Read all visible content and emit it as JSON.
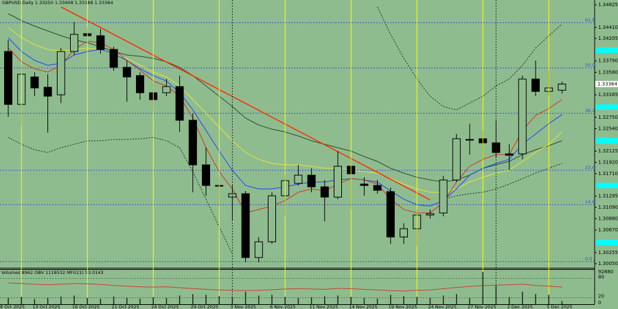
{
  "chart_data": {
    "type": "candlestick",
    "title": "GBPUSD,Daily 1.33250 1.33408 1.33188 1.33364",
    "background": "#8fbc8f",
    "bull_color": "#8fbc8f",
    "bear_color": "#000000",
    "categories": [
      "8 Oct 2025",
      null,
      null,
      "13 Oct 2025",
      null,
      null,
      "16 Oct 2025",
      null,
      null,
      "21 Oct 2025",
      null,
      null,
      "24 Oct 2025",
      null,
      null,
      "29 Oct 2025",
      null,
      null,
      "3 Nov 2025",
      null,
      null,
      "6 Nov 2025",
      null,
      null,
      "11 Nov 2025",
      null,
      null,
      "14 Nov 2025",
      null,
      null,
      "19 Nov 2025",
      null,
      null,
      "24 Nov 2025",
      null,
      null,
      "27 Nov 2025",
      null,
      null,
      "2 Dec 2025",
      null,
      null,
      "5 Dec 2025",
      null
    ],
    "open": [
      null,
      1.33964,
      1.32988,
      1.33495,
      1.33305,
      1.33165,
      1.33964,
      1.34293,
      1.34255,
      1.34002,
      1.33672,
      1.3352,
      1.33203,
      1.33203,
      1.33317,
      1.32696,
      1.31873,
      1.31493,
      1.31278,
      1.31341,
      1.30163,
      1.30454,
      1.31303,
      1.31531,
      1.31683,
      1.31468,
      1.31278,
      1.31848,
      1.31519,
      1.31493,
      1.31379,
      1.30543,
      1.30695,
      1.30948,
      1.30986,
      1.31594,
      1.32342,
      1.32355,
      1.32279,
      1.32076,
      1.32076,
      1.33456,
      1.33228,
      1.3325
    ],
    "high": [
      null,
      1.34179,
      1.3371,
      1.33583,
      1.33545,
      1.34027,
      1.34508,
      1.34407,
      1.34381,
      1.34052,
      1.33798,
      1.33583,
      1.33393,
      1.33456,
      1.3352,
      1.32823,
      1.3219,
      1.31683,
      1.31493,
      1.31392,
      1.30543,
      1.31366,
      1.31683,
      1.31873,
      1.3181,
      1.31594,
      1.32126,
      1.31975,
      1.31645,
      1.31594,
      1.31455,
      1.30796,
      1.3105,
      1.3105,
      1.3167,
      1.32443,
      1.32633,
      1.32506,
      1.32696,
      1.32253,
      1.3352,
      1.33798,
      1.33621,
      1.33408
    ],
    "low": [
      null,
      1.3276,
      1.32595,
      1.3314,
      1.32468,
      1.33013,
      1.339,
      1.34179,
      1.33925,
      1.33609,
      1.33038,
      1.33076,
      1.32861,
      1.3314,
      1.32481,
      1.31366,
      1.31303,
      1.31113,
      1.30859,
      1.30074,
      1.30074,
      1.30416,
      1.30923,
      1.31493,
      1.31366,
      1.30834,
      1.31239,
      1.3105,
      1.31303,
      1.31341,
      1.30416,
      1.30416,
      1.30378,
      1.30885,
      1.30923,
      1.31556,
      1.32063,
      1.31975,
      1.32,
      1.31772,
      1.31975,
      1.3314,
      1.3314,
      1.33188
    ],
    "close": [
      null,
      1.32988,
      1.33545,
      1.33292,
      1.3314,
      1.33964,
      1.3428,
      1.34255,
      1.34002,
      1.33672,
      1.33495,
      1.33203,
      1.33076,
      1.33317,
      1.32696,
      1.31873,
      1.31493,
      1.3148,
      1.31341,
      1.30163,
      1.30454,
      1.31303,
      1.31582,
      1.31683,
      1.31468,
      1.31278,
      1.31848,
      1.31708,
      1.31493,
      1.31404,
      1.30543,
      1.30695,
      1.30948,
      1.30973,
      1.31594,
      1.32355,
      1.32329,
      1.32279,
      1.32101,
      1.3205,
      1.33456,
      1.33228,
      1.33292,
      1.33364
    ],
    "ylim": [
      1.29974,
      1.34914
    ],
    "yticks": [
      1.34825,
      {
        "value": 1.3441,
        "label": "1.34410"
      },
      1.34205,
      {
        "value": 1.3379,
        "label": "1.33790"
      },
      {
        "value": 1.3358,
        "label": "1.33580"
      },
      1.33165,
      {
        "value": 1.3275,
        "label": "1.32750"
      },
      {
        "value": 1.3254,
        "label": "1.32540"
      },
      1.32125,
      {
        "value": 1.3192,
        "label": "1.31920"
      },
      {
        "value": 1.3171,
        "label": "1.31710"
      },
      1.31295,
      {
        "value": 1.3109,
        "label": "1.31090"
      },
      {
        "value": 1.3088,
        "label": "1.30880"
      },
      {
        "value": 1.3067,
        "label": "1.30670"
      },
      1.30255,
      {
        "value": 1.3005,
        "label": "1.30050"
      }
    ],
    "last_price": {
      "value": 1.33364,
      "label": "1.33364"
    },
    "alert_levels": {
      "color": "#00ffff",
      "values": [
        1.33989,
        1.32938,
        1.32316,
        1.31493,
        1.30441
      ]
    },
    "overlays": [
      {
        "color": "#2f4a2f",
        "style": "solid",
        "values": [
          null,
          1.34661,
          1.34534,
          1.34433,
          1.34344,
          1.34255,
          1.34179,
          1.34128,
          1.34052,
          1.33964,
          1.339,
          1.33875,
          1.33837,
          1.33774,
          1.33672,
          1.3352,
          1.3333,
          1.3314,
          1.3295,
          1.32735,
          1.32608,
          1.32532,
          1.32481,
          1.32405,
          1.32317,
          1.32253,
          1.3219,
          1.32127,
          1.32026,
          1.31937,
          1.3181,
          1.31721,
          1.31645,
          1.31595,
          1.31557,
          1.31595,
          1.31683,
          1.3181,
          1.31874,
          1.31937,
          1.32063,
          1.32152,
          1.32228,
          1.32317
        ]
      },
      {
        "color": "#e4e43a",
        "style": "solid",
        "values": [
          null,
          1.34407,
          1.34217,
          1.3409,
          1.34002,
          1.33976,
          1.34002,
          1.34027,
          1.34002,
          1.33926,
          1.33837,
          1.3371,
          1.33584,
          1.33494,
          1.3333,
          1.33077,
          1.32824,
          1.3257,
          1.32317,
          1.32101,
          1.31975,
          1.31899,
          1.31874,
          1.31874,
          1.31848,
          1.3181,
          1.3181,
          1.31772,
          1.31747,
          1.31721,
          1.3162,
          1.31518,
          1.3143,
          1.31367,
          1.31367,
          1.3143,
          1.31557,
          1.31645,
          1.31721,
          1.31772,
          1.31937,
          1.32101,
          1.32253,
          1.32481
        ]
      },
      {
        "color": "#1f3fff",
        "style": "solid",
        "values": [
          null,
          1.34217,
          1.33964,
          1.33799,
          1.3371,
          1.33748,
          1.339,
          1.33964,
          1.34002,
          1.33926,
          1.33799,
          1.33644,
          1.3352,
          1.33419,
          1.33204,
          1.32887,
          1.32507,
          1.32127,
          1.31772,
          1.31493,
          1.3143,
          1.3143,
          1.31468,
          1.31518,
          1.31557,
          1.31557,
          1.31595,
          1.3162,
          1.31595,
          1.31557,
          1.31392,
          1.3124,
          1.31138,
          1.31113,
          1.31214,
          1.3143,
          1.31683,
          1.3181,
          1.31899,
          1.31975,
          1.32253,
          1.32443,
          1.32633,
          1.32798
        ]
      },
      {
        "color": "#d8301a",
        "style": "solid",
        "values": [
          null,
          1.34027,
          1.33774,
          1.33644,
          1.33584,
          1.3371,
          1.34002,
          1.34154,
          1.34128,
          1.34002,
          1.33799,
          1.33621,
          1.33419,
          1.3333,
          1.3314,
          1.32735,
          1.3219,
          1.31747,
          1.3143,
          1.30987,
          1.31049,
          1.31113,
          1.31214,
          1.31367,
          1.3143,
          1.31392,
          1.31518,
          1.3162,
          1.31595,
          1.31518,
          1.3124,
          1.31049,
          1.30987,
          1.30987,
          1.31176,
          1.31557,
          1.31848,
          1.31975,
          1.32063,
          1.32063,
          1.32507,
          1.32785,
          1.32912,
          1.33077
        ]
      },
      {
        "color": "#1c2c1c",
        "style": "dotted",
        "values": [
          null,
          null,
          null,
          null,
          null,
          null,
          null,
          null,
          null,
          null,
          null,
          null,
          null,
          null,
          null,
          null,
          null,
          null,
          null,
          null,
          null,
          null,
          null,
          null,
          null,
          null,
          null,
          null,
          null,
          1.34787,
          1.34281,
          1.33837,
          1.33457,
          1.3314,
          1.3295,
          1.32887,
          1.33014,
          1.3314,
          1.3333,
          1.33457,
          1.3371,
          1.34027,
          1.34255,
          1.34471
        ]
      },
      {
        "color": "#1c2c1c",
        "style": "dotted",
        "values": [
          null,
          1.3238,
          1.32253,
          1.32152,
          1.32101,
          1.3219,
          1.32253,
          1.32317,
          1.32317,
          1.32342,
          1.32342,
          1.32355,
          1.3238,
          1.32317,
          1.3219,
          1.31747,
          1.3124,
          1.30733,
          1.30226,
          null,
          null,
          null,
          null,
          null,
          null,
          null,
          null,
          null,
          null,
          null,
          null,
          null,
          null,
          null,
          1.3124,
          1.31303,
          1.31341,
          1.31367,
          1.3143,
          1.31518,
          1.3162,
          1.31721,
          1.3181,
          1.31899
        ]
      }
    ],
    "trendline": {
      "color": "#ff2a00",
      "x": [
        5,
        33
      ],
      "values": [
        1.34787,
        1.31227
      ]
    },
    "fibonacci": {
      "color": "#3050c8",
      "levels": [
        {
          "value": 1.34496,
          "label": "61.8"
        },
        {
          "value": 1.3366,
          "label": "50.0"
        },
        {
          "value": 1.32824,
          "label": "38.2"
        },
        {
          "value": 1.31772,
          "label": "23.6"
        },
        {
          "value": 1.31139,
          "label": "14.6"
        },
        {
          "value": 1.30088,
          "label": "0.0"
        }
      ]
    },
    "separators": {
      "color": "#ffff00",
      "x": [
        2,
        7,
        12,
        17,
        22,
        27,
        32,
        37,
        42
      ]
    },
    "dotted_separators": {
      "color": "#1c2c1c",
      "x": [
        18,
        38
      ]
    },
    "indicator": {
      "label": "Volumes 8962 OBV 1118532 MFI(21) 53.0143",
      "volume": {
        "color": "#1a2a1a",
        "lim": [
          0,
          92880
        ],
        "ticks": [
          92880
        ],
        "values": [
          null,
          18000,
          21000,
          15000,
          18000,
          22000,
          25000,
          18000,
          16000,
          22000,
          18000,
          16000,
          20000,
          18000,
          25000,
          29000,
          27000,
          23000,
          21000,
          36000,
          25000,
          27000,
          21000,
          18000,
          20000,
          23000,
          25000,
          21000,
          18000,
          16000,
          27000,
          23000,
          21000,
          18000,
          25000,
          29000,
          18000,
          92880,
          54000,
          21000,
          36000,
          29000,
          27000,
          8962
        ]
      },
      "mfi": {
        "color": "#c8402a",
        "lim": [
          0,
          100
        ],
        "ticks": [
          80,
          20,
          0
        ],
        "levels": [
          80,
          20
        ],
        "values": [
          null,
          66,
          64,
          62,
          60,
          62,
          64,
          63,
          61,
          58,
          56,
          54,
          53,
          54,
          51,
          48,
          46,
          44,
          43,
          42,
          43,
          45,
          47,
          48,
          47,
          46,
          49,
          48,
          46,
          44,
          42,
          41,
          43,
          44,
          48,
          52,
          55,
          58,
          59,
          60,
          62,
          58,
          56,
          53.0143
        ]
      }
    }
  }
}
